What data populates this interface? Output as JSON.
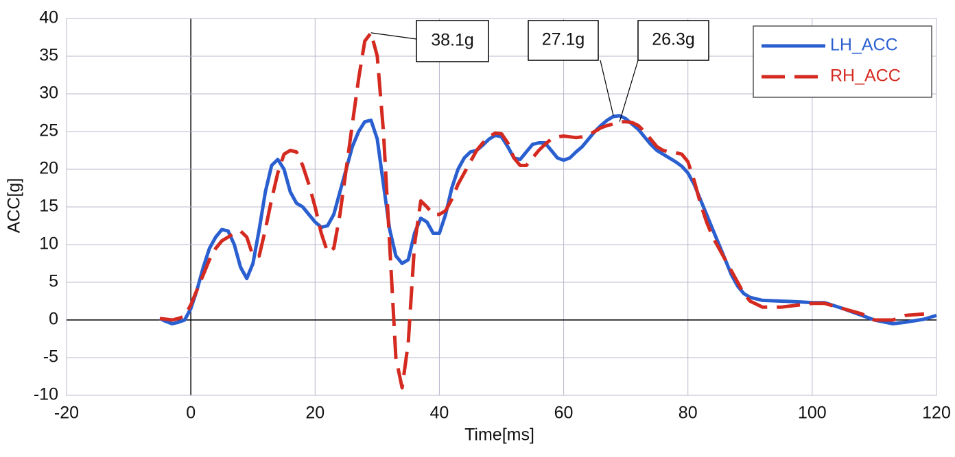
{
  "chart_data": {
    "type": "line",
    "xlabel": "Time[ms]",
    "ylabel": "ACC[g]",
    "x": [
      -5,
      -4,
      -3,
      -2,
      -1,
      0,
      1,
      2,
      3,
      4,
      5,
      6,
      7,
      8,
      9,
      10,
      11,
      12,
      13,
      14,
      15,
      16,
      17,
      18,
      19,
      20,
      21,
      22,
      23,
      24,
      25,
      26,
      27,
      28,
      29,
      30,
      31,
      32,
      33,
      34,
      35,
      36,
      37,
      38,
      39,
      40,
      41,
      42,
      43,
      44,
      45,
      46,
      47,
      48,
      49,
      50,
      51,
      52,
      53,
      54,
      55,
      56,
      57,
      58,
      59,
      60,
      61,
      62,
      63,
      64,
      65,
      66,
      67,
      68,
      69,
      70,
      71,
      72,
      73,
      74,
      75,
      76,
      77,
      78,
      79,
      80,
      81,
      82,
      83,
      84,
      85,
      86,
      87,
      88,
      89,
      90,
      92,
      95,
      98,
      100,
      102,
      105,
      108,
      110,
      113,
      115,
      118,
      120
    ],
    "series": [
      {
        "name": "LH_ACC",
        "color": "#2a5fd0",
        "dash": "solid",
        "values": [
          0.2,
          -0.2,
          -0.5,
          -0.3,
          0,
          1.5,
          4,
          7,
          9.5,
          11,
          12,
          11.8,
          10,
          7,
          5.5,
          7.5,
          12,
          17,
          20.5,
          21.3,
          20,
          17,
          15.5,
          15,
          14,
          13,
          12.3,
          12.5,
          14,
          17,
          20,
          23,
          25,
          26.3,
          26.5,
          24,
          18,
          12,
          8.5,
          7.5,
          8,
          11.5,
          13.5,
          13,
          11.5,
          11.5,
          14,
          17.5,
          20,
          21.5,
          22.3,
          22.5,
          23.2,
          24,
          24.5,
          24.3,
          23,
          21.5,
          21.3,
          22.3,
          23.3,
          23.5,
          23.5,
          22.5,
          21.5,
          21.2,
          21.5,
          22.3,
          23,
          24,
          25,
          25.8,
          26.5,
          27,
          27.1,
          26.7,
          26,
          25.3,
          24.3,
          23.3,
          22.5,
          22,
          21.5,
          21,
          20.4,
          19.5,
          18,
          16,
          14,
          12,
          10,
          8,
          6,
          4.5,
          3.5,
          3,
          2.6,
          2.5,
          2.4,
          2.3,
          2.3,
          1.5,
          0.6,
          0,
          -0.5,
          -0.3,
          0.1,
          0.6
        ]
      },
      {
        "name": "RH_ACC",
        "color": "#d42a20",
        "dash": "dashed",
        "values": [
          0.2,
          0.1,
          0,
          0.2,
          0.5,
          2,
          4,
          6,
          8,
          9.5,
          10.5,
          11,
          11.5,
          11.8,
          11,
          8.5,
          8.5,
          12,
          16,
          19.5,
          22,
          22.5,
          22.3,
          20.5,
          18,
          15,
          11.5,
          9,
          9.5,
          14,
          20,
          26,
          32,
          37,
          38.1,
          35,
          25,
          10,
          -5,
          -9,
          -3,
          10,
          15.8,
          15,
          14,
          14,
          14.5,
          16,
          18,
          19.5,
          21,
          22.5,
          23.5,
          24.3,
          24.8,
          24.7,
          23.5,
          21.5,
          20.5,
          20.5,
          21.5,
          22.5,
          23.3,
          24,
          24.3,
          24.4,
          24.3,
          24.2,
          24.3,
          24.6,
          25,
          25.5,
          25.8,
          26,
          26.3,
          26.3,
          26.2,
          25.8,
          25,
          24,
          23,
          22.5,
          22.3,
          22.2,
          22,
          21,
          18.5,
          15.5,
          13,
          11,
          9.5,
          8,
          6.5,
          5,
          3.5,
          2.5,
          1.7,
          1.7,
          2,
          2.2,
          2.2,
          1.5,
          0.8,
          0,
          0,
          0.6,
          0.8,
          null
        ]
      }
    ],
    "annotations": [
      {
        "label": "38.1g",
        "x": 29,
        "y": 38.1
      },
      {
        "label": "27.1g",
        "x": 68,
        "y": 27.1
      },
      {
        "label": "26.3g",
        "x": 69,
        "y": 26.3
      }
    ],
    "xlim": [
      -20,
      120
    ],
    "xticks": [
      -20,
      0,
      20,
      40,
      60,
      80,
      100,
      120
    ],
    "ylim": [
      -10,
      40
    ],
    "yticks": [
      -10,
      -5,
      0,
      5,
      10,
      15,
      20,
      25,
      30,
      35,
      40
    ],
    "grid": true,
    "legend": "upper right"
  }
}
